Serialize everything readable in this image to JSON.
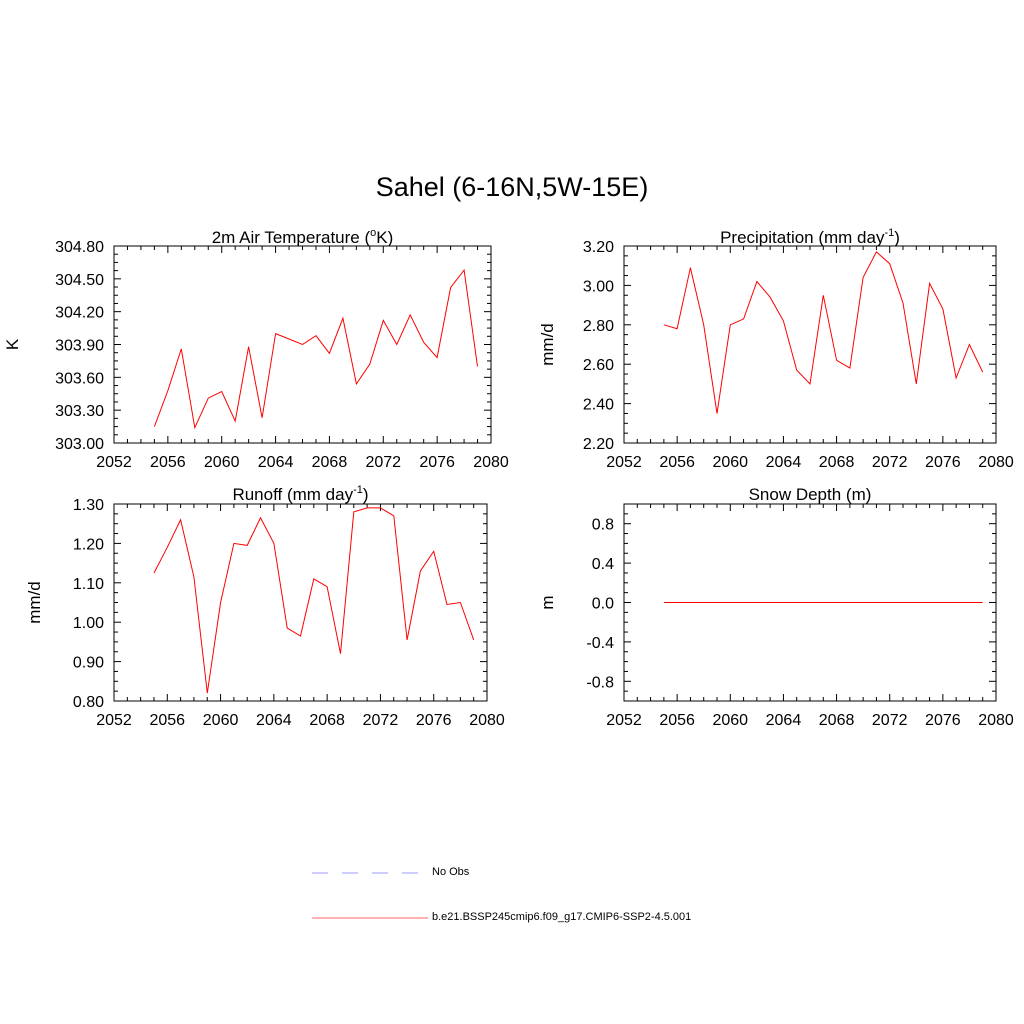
{
  "figure": {
    "title": "Sahel (6-16N,5W-15E)"
  },
  "legend": {
    "items": [
      {
        "label": "No Obs",
        "color": "#9999ff",
        "style": "dashed"
      },
      {
        "label": "b.e21.BSSP245cmip6.f09_g17.CMIP6-SSP2-4.5.001",
        "color": "#ff0000",
        "style": "solid"
      }
    ]
  },
  "chart_data": [
    {
      "type": "line",
      "title": "2m Air Temperature (°K)",
      "title_main": "2m Air Temperature (",
      "title_sup": "o",
      "title_end": "K)",
      "ylabel": "K",
      "xlim": [
        2052,
        2080
      ],
      "ylim": [
        303.0,
        304.8
      ],
      "xticks": [
        "2052",
        "2056",
        "2060",
        "2064",
        "2068",
        "2072",
        "2076",
        "2080"
      ],
      "yticks": [
        "303.00",
        "303.30",
        "303.60",
        "303.90",
        "304.20",
        "304.50",
        "304.80"
      ],
      "series": [
        {
          "color": "#ff0000",
          "x": [
            2055,
            2056,
            2057,
            2058,
            2059,
            2060,
            2061,
            2062,
            2063,
            2064,
            2065,
            2066,
            2067,
            2068,
            2069,
            2070,
            2071,
            2072,
            2073,
            2074,
            2075,
            2076,
            2077,
            2078,
            2079
          ],
          "y": [
            303.15,
            303.48,
            303.86,
            303.14,
            303.41,
            303.47,
            303.2,
            303.88,
            303.23,
            304.0,
            303.95,
            303.9,
            303.98,
            303.82,
            304.14,
            303.54,
            303.72,
            304.12,
            303.9,
            304.17,
            303.92,
            303.78,
            304.42,
            304.58,
            303.7
          ]
        }
      ]
    },
    {
      "type": "line",
      "title": "Precipitation (mm day-1)",
      "title_main": "Precipitation (mm day",
      "title_sup": "-1",
      "title_end": ")",
      "ylabel": "mm/d",
      "xlim": [
        2052,
        2080
      ],
      "ylim": [
        2.2,
        3.2
      ],
      "xticks": [
        "2052",
        "2056",
        "2060",
        "2064",
        "2068",
        "2072",
        "2076",
        "2080"
      ],
      "yticks": [
        "2.20",
        "2.40",
        "2.60",
        "2.80",
        "3.00",
        "3.20"
      ],
      "series": [
        {
          "color": "#ff0000",
          "x": [
            2055,
            2056,
            2057,
            2058,
            2059,
            2060,
            2061,
            2062,
            2063,
            2064,
            2065,
            2066,
            2067,
            2068,
            2069,
            2070,
            2071,
            2072,
            2073,
            2074,
            2075,
            2076,
            2077,
            2078,
            2079
          ],
          "y": [
            2.8,
            2.78,
            3.09,
            2.8,
            2.35,
            2.8,
            2.83,
            3.02,
            2.94,
            2.82,
            2.57,
            2.5,
            2.95,
            2.62,
            2.58,
            3.04,
            3.17,
            3.11,
            2.91,
            2.5,
            3.01,
            2.88,
            2.53,
            2.7,
            2.56
          ]
        }
      ]
    },
    {
      "type": "line",
      "title": "Runoff (mm day-1)",
      "title_main": "Runoff (mm day",
      "title_sup": "-1",
      "title_end": ")",
      "ylabel": "mm/d",
      "xlim": [
        2052,
        2080
      ],
      "ylim": [
        0.8,
        1.3
      ],
      "xticks": [
        "2052",
        "2056",
        "2060",
        "2064",
        "2068",
        "2072",
        "2076",
        "2080"
      ],
      "yticks": [
        "0.80",
        "0.90",
        "1.00",
        "1.10",
        "1.20",
        "1.30"
      ],
      "series": [
        {
          "color": "#ff0000",
          "x": [
            2055,
            2056,
            2057,
            2058,
            2059,
            2060,
            2061,
            2062,
            2063,
            2064,
            2065,
            2066,
            2067,
            2068,
            2069,
            2070,
            2071,
            2072,
            2073,
            2074,
            2075,
            2076,
            2077,
            2078,
            2079
          ],
          "y": [
            1.125,
            1.19,
            1.26,
            1.115,
            0.82,
            1.05,
            1.2,
            1.195,
            1.265,
            1.2,
            0.985,
            0.965,
            1.11,
            1.09,
            0.92,
            1.28,
            1.29,
            1.29,
            1.27,
            0.955,
            1.13,
            1.18,
            1.045,
            1.05,
            0.955
          ]
        }
      ]
    },
    {
      "type": "line",
      "title": "Snow Depth (m)",
      "title_main": "Snow Depth (m)",
      "title_sup": "",
      "title_end": "",
      "ylabel": "m",
      "xlim": [
        2052,
        2080
      ],
      "ylim": [
        -1.0,
        1.0
      ],
      "xticks": [
        "2052",
        "2056",
        "2060",
        "2064",
        "2068",
        "2072",
        "2076",
        "2080"
      ],
      "yticks": [
        "-0.8",
        "-0.4",
        "0.0",
        "0.4",
        "0.8"
      ],
      "ytick_values": [
        -0.8,
        -0.4,
        0.0,
        0.4,
        0.8
      ],
      "series": [
        {
          "color": "#ff0000",
          "x": [
            2055,
            2079
          ],
          "y": [
            0.0,
            0.0
          ]
        }
      ]
    }
  ]
}
